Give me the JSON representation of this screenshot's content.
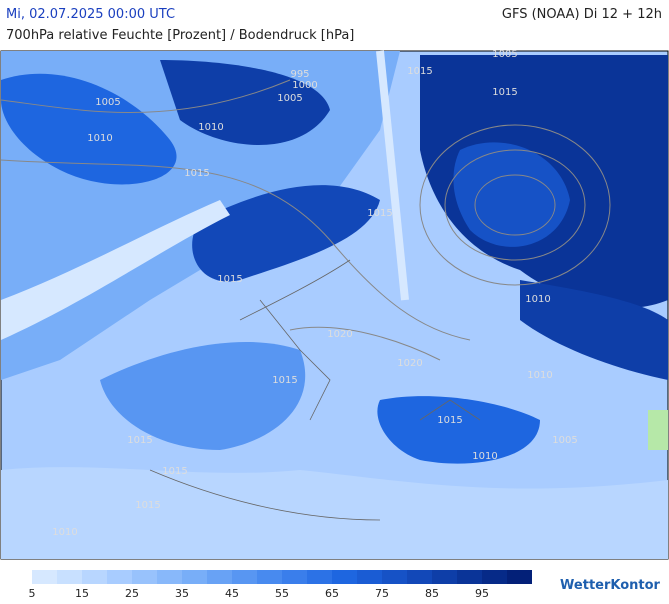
{
  "header": {
    "datetime": "Mi, 02.07.2025 00:00 UTC",
    "model": "GFS (NOAA) Di 12 + 12h",
    "subtitle": "700hPa relative Feuchte [Prozent] / Bodendruck [hPa]"
  },
  "isobar_labels": [
    "995",
    "1000",
    "1005",
    "1005",
    "1010",
    "1010",
    "1015",
    "1015",
    "1015",
    "1005",
    "1015",
    "1020",
    "1020",
    "1015",
    "1015",
    "1015",
    "1015",
    "1010",
    "1010",
    "1005",
    "1015",
    "1010",
    "1010",
    "1015"
  ],
  "colorbar": {
    "colors": [
      "#d6e8ff",
      "#c8e0ff",
      "#b8d6ff",
      "#a8ccff",
      "#98c2fc",
      "#88b8fa",
      "#78aef8",
      "#68a2f5",
      "#5896f2",
      "#488aef",
      "#3a7eeb",
      "#2c72e6",
      "#1e66e0",
      "#1a5cd4",
      "#1652c6",
      "#1248b8",
      "#0e3ea8",
      "#0a3498",
      "#062a88",
      "#032078"
    ],
    "labels": [
      5,
      15,
      25,
      35,
      45,
      55,
      65,
      75,
      85,
      95
    ]
  },
  "brand": "WetterKontor"
}
